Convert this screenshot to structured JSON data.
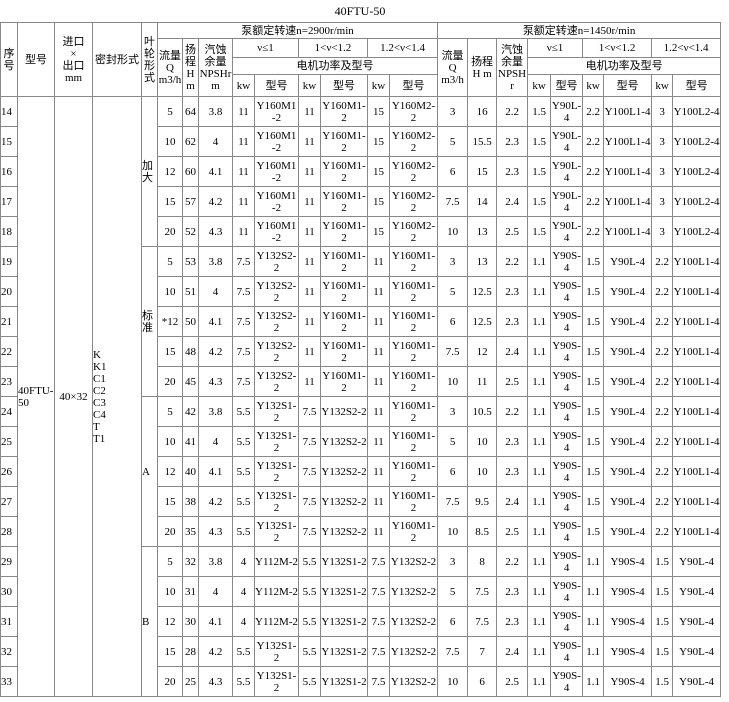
{
  "title": "40FTU-50",
  "header": {
    "no": "序号",
    "model": "型号",
    "ports": "进口\n×\n出口\nmm",
    "seal": "密封形式",
    "impeller": "叶轮形式",
    "speeds": [
      {
        "label": "泵额定转速n=2900r/min",
        "flow": "流量\nQ\nm3/h",
        "head": "扬程\nH\nm",
        "npsh": "汽蚀\n余量\nNPSHr\nm",
        "ranges": [
          "ν≤1",
          "1<ν<1.2",
          "1.2<ν<1.4"
        ],
        "motor": "电机功率及型号",
        "kw": "kw",
        "type": "型号"
      },
      {
        "label": "泵额定转速n=1450r/min",
        "flow": "流量\nQ\nm3/h",
        "head": "扬程\nH m",
        "npsh": "汽蚀\n余量\nNPSHr",
        "ranges": [
          "ν≤1",
          "1<ν<1.2",
          "1.2<ν<1.4"
        ],
        "motor": "电机功率及型号",
        "kw": "kw",
        "type": "型号"
      }
    ]
  },
  "model": "40FTU-50",
  "ports": "40×32",
  "seals": [
    "K",
    "K1",
    "C1",
    "C2",
    "C3",
    "C4",
    "T",
    "T1"
  ],
  "impeller_groups": [
    {
      "label": "加大",
      "rows": [
        [
          "14",
          "5",
          "64",
          "3.8",
          "11",
          "Y160M1-2",
          "11",
          "Y160M1-2",
          "15",
          "Y160M2-2",
          "3",
          "16",
          "2.2",
          "1.5",
          "Y90L-4",
          "2.2",
          "Y100L1-4",
          "3",
          "Y100L2-4"
        ],
        [
          "15",
          "10",
          "62",
          "4",
          "11",
          "Y160M1-2",
          "11",
          "Y160M1-2",
          "15",
          "Y160M2-2",
          "5",
          "15.5",
          "2.3",
          "1.5",
          "Y90L-4",
          "2.2",
          "Y100L1-4",
          "3",
          "Y100L2-4"
        ],
        [
          "16",
          "12",
          "60",
          "4.1",
          "11",
          "Y160M1-2",
          "11",
          "Y160M1-2",
          "15",
          "Y160M2-2",
          "6",
          "15",
          "2.3",
          "1.5",
          "Y90L-4",
          "2.2",
          "Y100L1-4",
          "3",
          "Y100L2-4"
        ],
        [
          "17",
          "15",
          "57",
          "4.2",
          "11",
          "Y160M1-2",
          "11",
          "Y160M1-2",
          "15",
          "Y160M2-2",
          "7.5",
          "14",
          "2.4",
          "1.5",
          "Y90L-4",
          "2.2",
          "Y100L1-4",
          "3",
          "Y100L2-4"
        ],
        [
          "18",
          "20",
          "52",
          "4.3",
          "11",
          "Y160M1-2",
          "11",
          "Y160M1-2",
          "15",
          "Y160M2-2",
          "10",
          "13",
          "2.5",
          "1.5",
          "Y90L-4",
          "2.2",
          "Y100L1-4",
          "3",
          "Y100L2-4"
        ]
      ]
    },
    {
      "label": "标准",
      "rows": [
        [
          "19",
          "5",
          "53",
          "3.8",
          "7.5",
          "Y132S2-2",
          "11",
          "Y160M1-2",
          "11",
          "Y160M1-2",
          "3",
          "13",
          "2.2",
          "1.1",
          "Y90S-4",
          "1.5",
          "Y90L-4",
          "2.2",
          "Y100L1-4"
        ],
        [
          "20",
          "10",
          "51",
          "4",
          "7.5",
          "Y132S2-2",
          "11",
          "Y160M1-2",
          "11",
          "Y160M1-2",
          "5",
          "12.5",
          "2.3",
          "1.1",
          "Y90S-4",
          "1.5",
          "Y90L-4",
          "2.2",
          "Y100L1-4"
        ],
        [
          "21",
          "*12",
          "50",
          "4.1",
          "7.5",
          "Y132S2-2",
          "11",
          "Y160M1-2",
          "11",
          "Y160M1-2",
          "6",
          "12.5",
          "2.3",
          "1.1",
          "Y90S-4",
          "1.5",
          "Y90L-4",
          "2.2",
          "Y100L1-4"
        ],
        [
          "22",
          "15",
          "48",
          "4.2",
          "7.5",
          "Y132S2-2",
          "11",
          "Y160M1-2",
          "11",
          "Y160M1-2",
          "7.5",
          "12",
          "2.4",
          "1.1",
          "Y90S-4",
          "1.5",
          "Y90L-4",
          "2.2",
          "Y100L1-4"
        ],
        [
          "23",
          "20",
          "45",
          "4.3",
          "7.5",
          "Y132S2-2",
          "11",
          "Y160M1-2",
          "11",
          "Y160M1-2",
          "10",
          "11",
          "2.5",
          "1.1",
          "Y90S-4",
          "1.5",
          "Y90L-4",
          "2.2",
          "Y100L1-4"
        ]
      ]
    },
    {
      "label": "A",
      "rows": [
        [
          "24",
          "5",
          "42",
          "3.8",
          "5.5",
          "Y132S1-2",
          "7.5",
          "Y132S2-2",
          "11",
          "Y160M1-2",
          "3",
          "10.5",
          "2.2",
          "1.1",
          "Y90S-4",
          "1.5",
          "Y90L-4",
          "2.2",
          "Y100L1-4"
        ],
        [
          "25",
          "10",
          "41",
          "4",
          "5.5",
          "Y132S1-2",
          "7.5",
          "Y132S2-2",
          "11",
          "Y160M1-2",
          "5",
          "10",
          "2.3",
          "1.1",
          "Y90S-4",
          "1.5",
          "Y90L-4",
          "2.2",
          "Y100L1-4"
        ],
        [
          "26",
          "12",
          "40",
          "4.1",
          "5.5",
          "Y132S1-2",
          "7.5",
          "Y132S2-2",
          "11",
          "Y160M1-2",
          "6",
          "10",
          "2.3",
          "1.1",
          "Y90S-4",
          "1.5",
          "Y90L-4",
          "2.2",
          "Y100L1-4"
        ],
        [
          "27",
          "15",
          "38",
          "4.2",
          "5.5",
          "Y132S1-2",
          "7.5",
          "Y132S2-2",
          "11",
          "Y160M1-2",
          "7.5",
          "9.5",
          "2.4",
          "1.1",
          "Y90S-4",
          "1.5",
          "Y90L-4",
          "2.2",
          "Y100L1-4"
        ],
        [
          "28",
          "20",
          "35",
          "4.3",
          "5.5",
          "Y132S1-2",
          "7.5",
          "Y132S2-2",
          "11",
          "Y160M1-2",
          "10",
          "8.5",
          "2.5",
          "1.1",
          "Y90S-4",
          "1.5",
          "Y90L-4",
          "2.2",
          "Y100L1-4"
        ]
      ]
    },
    {
      "label": "B",
      "rows": [
        [
          "29",
          "5",
          "32",
          "3.8",
          "4",
          "Y112M-2",
          "5.5",
          "Y132S1-2",
          "7.5",
          "Y132S2-2",
          "3",
          "8",
          "2.2",
          "1.1",
          "Y90S-4",
          "1.1",
          "Y90S-4",
          "1.5",
          "Y90L-4"
        ],
        [
          "30",
          "10",
          "31",
          "4",
          "4",
          "Y112M-2",
          "5.5",
          "Y132S1-2",
          "7.5",
          "Y132S2-2",
          "5",
          "7.5",
          "2.3",
          "1.1",
          "Y90S-4",
          "1.1",
          "Y90S-4",
          "1.5",
          "Y90L-4"
        ],
        [
          "31",
          "12",
          "30",
          "4.1",
          "4",
          "Y112M-2",
          "5.5",
          "Y132S1-2",
          "7.5",
          "Y132S2-2",
          "6",
          "7.5",
          "2.3",
          "1.1",
          "Y90S-4",
          "1.1",
          "Y90S-4",
          "1.5",
          "Y90L-4"
        ],
        [
          "32",
          "15",
          "28",
          "4.2",
          "5.5",
          "Y132S1-2",
          "5.5",
          "Y132S1-2",
          "7.5",
          "Y132S2-2",
          "7.5",
          "7",
          "2.4",
          "1.1",
          "Y90S-4",
          "1.1",
          "Y90S-4",
          "1.5",
          "Y90L-4"
        ],
        [
          "33",
          "20",
          "25",
          "4.3",
          "5.5",
          "Y132S1-2",
          "5.5",
          "Y132S1-2",
          "7.5",
          "Y132S2-2",
          "10",
          "6",
          "2.5",
          "1.1",
          "Y90S-4",
          "1.1",
          "Y90S-4",
          "1.5",
          "Y90L-4"
        ]
      ]
    }
  ]
}
